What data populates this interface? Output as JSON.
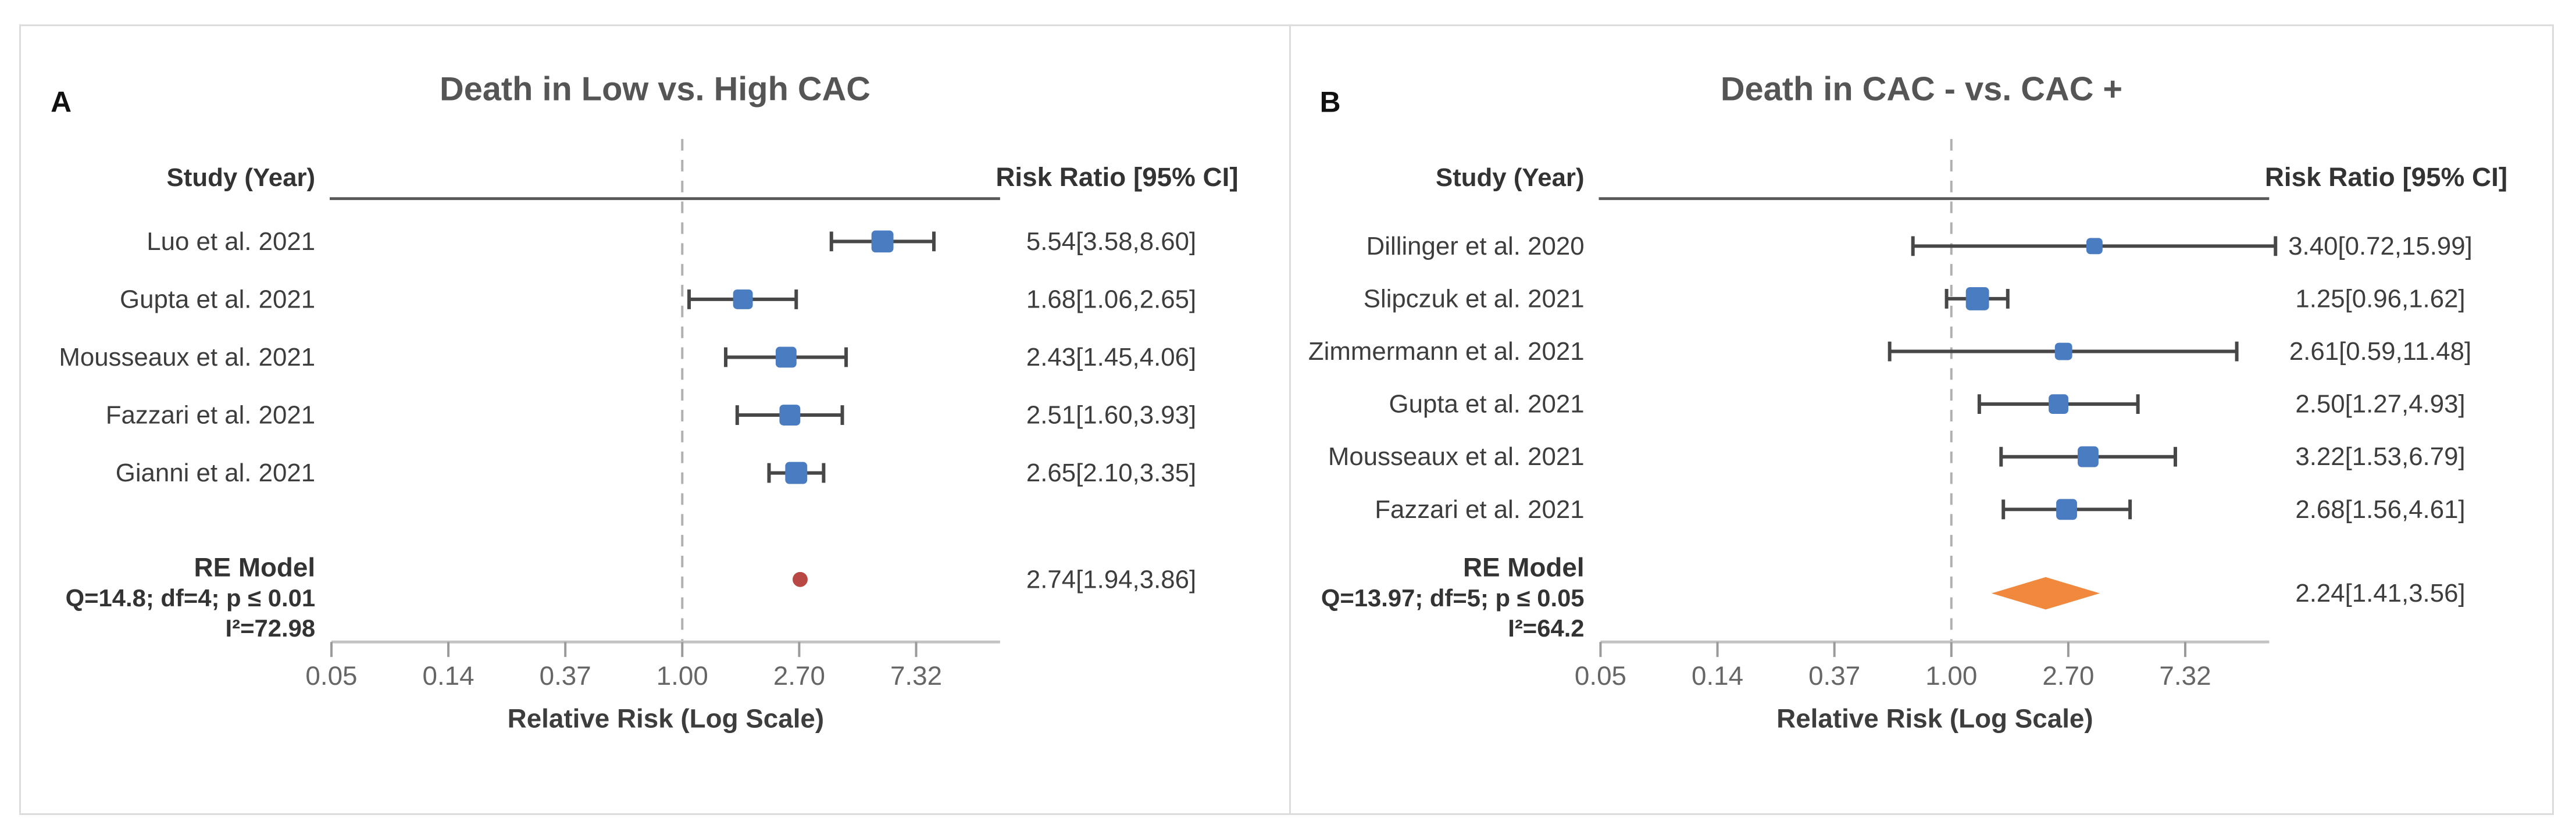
{
  "colors": {
    "panel_border": "#dcdcdc",
    "title_text": "#555555",
    "corner_label": "#111111",
    "header_text": "#333333",
    "body_text": "#3d3d3d",
    "axis_line": "#c3c3c3",
    "tick_mark": "#9a9a9a",
    "tick_label": "#666666",
    "underline": "#595959",
    "dashed_ref": "#b0b0b0",
    "whisker": "#474747",
    "square": "#4a7cc1",
    "re_dot": "#b94744",
    "re_diamond": "#f0883e"
  },
  "chart_data": [
    {
      "type": "scatter",
      "subtype": "forest-plot",
      "panel_label": "A",
      "title": "Death in Low vs. High CAC",
      "study_header": "Study (Year)",
      "rr_header": "Risk Ratio [95% CI]",
      "xlabel": "Relative Risk (Log Scale)",
      "x_scale": "log",
      "x_ticks": [
        "0.05",
        "0.14",
        "0.37",
        "1.00",
        "2.70",
        "7.32"
      ],
      "ref_line": 1.0,
      "marker": "dot",
      "studies": [
        {
          "name": "Luo et al. 2021",
          "rr": 5.54,
          "ci_low": 3.58,
          "ci_high": 8.6,
          "label": "5.54[3.58,8.60]",
          "weight": 38
        },
        {
          "name": "Gupta et al. 2021",
          "rr": 1.68,
          "ci_low": 1.06,
          "ci_high": 2.65,
          "label": "1.68[1.06,2.65]",
          "weight": 34
        },
        {
          "name": "Mousseaux et al. 2021",
          "rr": 2.43,
          "ci_low": 1.45,
          "ci_high": 4.06,
          "label": "2.43[1.45,4.06]",
          "weight": 36
        },
        {
          "name": "Fazzari et al. 2021",
          "rr": 2.51,
          "ci_low": 1.6,
          "ci_high": 3.93,
          "label": "2.51[1.60,3.93]",
          "weight": 36
        },
        {
          "name": "Gianni et al. 2021",
          "rr": 2.65,
          "ci_low": 2.1,
          "ci_high": 3.35,
          "label": "2.65[2.10,3.35]",
          "weight": 38
        }
      ],
      "re_model": {
        "name": "RE Model",
        "heterogeneity": "Q=14.8; df=4; p ≤ 0.01",
        "i2": "I²=72.98",
        "rr": 2.74,
        "ci_low": 1.94,
        "ci_high": 3.86,
        "label": "2.74[1.94,3.86]"
      }
    },
    {
      "type": "scatter",
      "subtype": "forest-plot",
      "panel_label": "B",
      "title": "Death in CAC - vs. CAC +",
      "study_header": "Study (Year)",
      "rr_header": "Risk Ratio [95% CI]",
      "xlabel": "Relative Risk (Log Scale)",
      "x_scale": "log",
      "x_ticks": [
        "0.05",
        "0.14",
        "0.37",
        "1.00",
        "2.70",
        "7.32"
      ],
      "ref_line": 1.0,
      "marker": "diamond",
      "studies": [
        {
          "name": "Dillinger et al. 2020",
          "rr": 3.4,
          "ci_low": 0.72,
          "ci_high": 15.99,
          "label": "3.40[0.72,15.99]",
          "weight": 28
        },
        {
          "name": "Slipczuk et al. 2021",
          "rr": 1.25,
          "ci_low": 0.96,
          "ci_high": 1.62,
          "label": "1.25[0.96,1.62]",
          "weight": 40
        },
        {
          "name": "Zimmermann et al. 2021",
          "rr": 2.61,
          "ci_low": 0.59,
          "ci_high": 11.48,
          "label": "2.61[0.59,11.48]",
          "weight": 30
        },
        {
          "name": "Gupta et al. 2021",
          "rr": 2.5,
          "ci_low": 1.27,
          "ci_high": 4.93,
          "label": "2.50[1.27,4.93]",
          "weight": 34
        },
        {
          "name": "Mousseaux et al. 2021",
          "rr": 3.22,
          "ci_low": 1.53,
          "ci_high": 6.79,
          "label": "3.22[1.53,6.79]",
          "weight": 36
        },
        {
          "name": "Fazzari et al. 2021",
          "rr": 2.68,
          "ci_low": 1.56,
          "ci_high": 4.61,
          "label": "2.68[1.56,4.61]",
          "weight": 36
        }
      ],
      "re_model": {
        "name": "RE Model",
        "heterogeneity": "Q=13.97; df=5; p ≤ 0.05",
        "i2": "I²=64.2",
        "rr": 2.24,
        "ci_low": 1.41,
        "ci_high": 3.56,
        "label": "2.24[1.41,3.56]"
      }
    }
  ]
}
